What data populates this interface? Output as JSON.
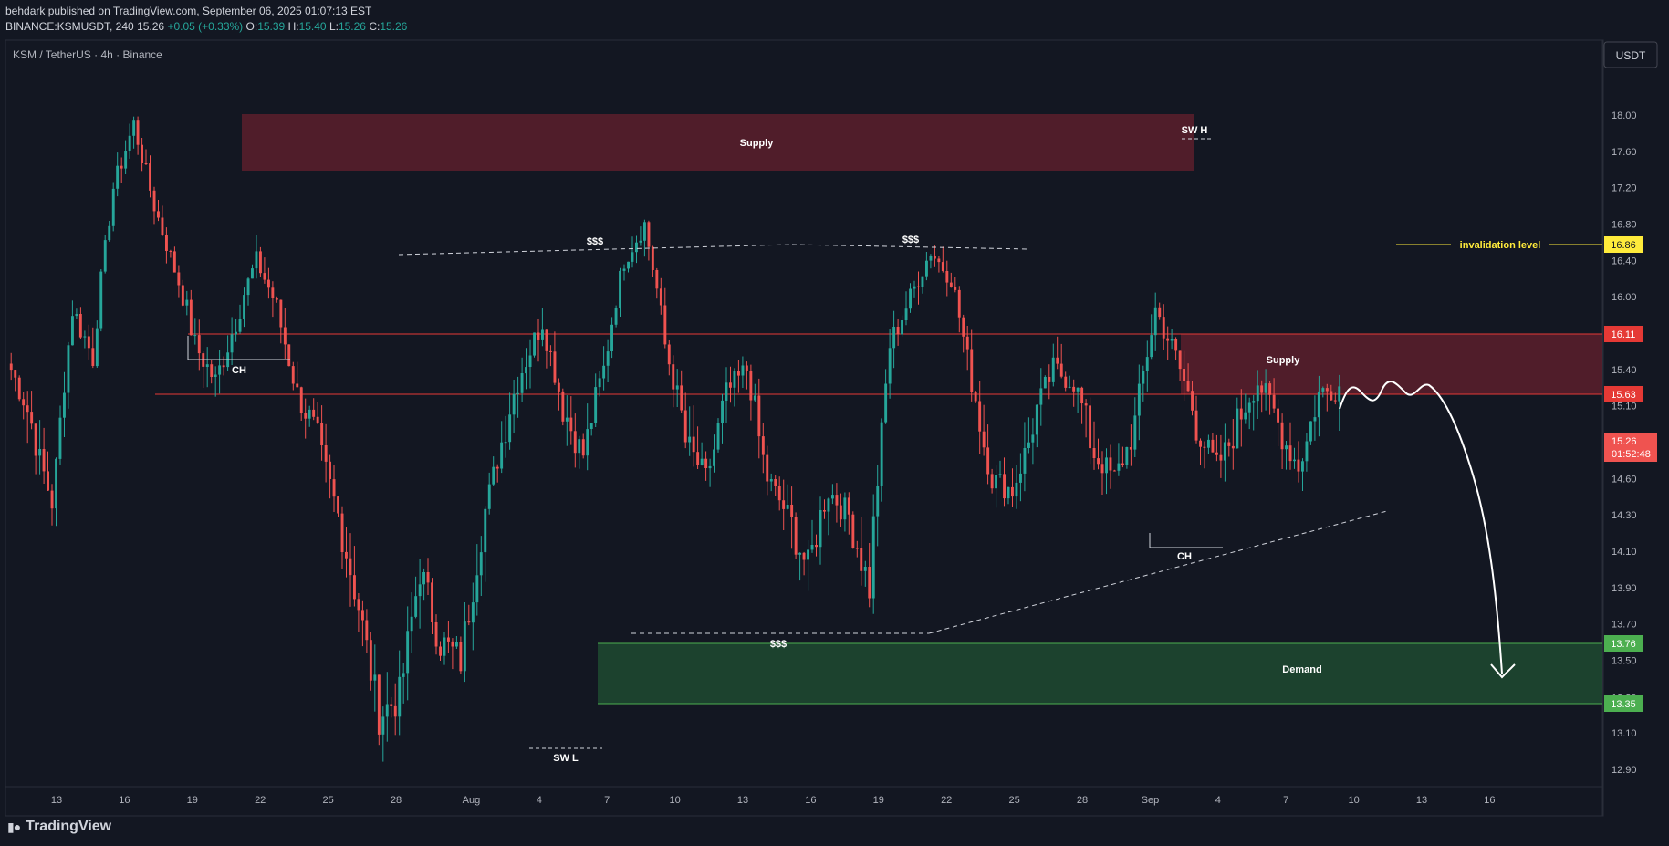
{
  "header": {
    "line1": "behdark published on TradingView.com, September 06, 2025 01:07:13 EST",
    "symbol": "BINANCE:KSMUSDT, 240",
    "last": "15.26",
    "change": "+0.05 (+0.33%)",
    "o_label": "O:",
    "o": "15.39",
    "h_label": "H:",
    "h": "15.40",
    "l_label": "L:",
    "l": "15.26",
    "c_label": "C:",
    "c": "15.26"
  },
  "chart_title": "KSM / TetherUS · 4h · Binance",
  "currency": "USDT",
  "footer": {
    "brand": "TradingView"
  },
  "colors": {
    "background": "#131722",
    "up": "#26a69a",
    "down": "#ef5350",
    "supply": "#5c1e2c",
    "demand": "#1f4a30",
    "level_red": "#e53935",
    "level_green": "#4caf50",
    "invalidation": "#ffeb3b"
  },
  "chart_data": {
    "type": "candlestick",
    "y_axis": {
      "ticks": [
        "18.00",
        "17.60",
        "17.20",
        "16.80",
        "16.40",
        "16.00",
        "15.70",
        "15.40",
        "15.10",
        "14.90",
        "14.60",
        "14.30",
        "14.10",
        "13.90",
        "13.70",
        "13.50",
        "13.30",
        "13.10",
        "12.90"
      ],
      "range": [
        12.8,
        18.2
      ]
    },
    "x_axis": {
      "ticks": [
        "13",
        "16",
        "19",
        "22",
        "25",
        "28",
        "Aug",
        "4",
        "7",
        "10",
        "13",
        "16",
        "19",
        "22",
        "25",
        "28",
        "Sep",
        "4",
        "7",
        "10",
        "13",
        "16"
      ]
    },
    "price_badges": [
      {
        "value": "16.86",
        "kind": "invalidation"
      },
      {
        "value": "16.11",
        "kind": "level"
      },
      {
        "value": "15.63",
        "kind": "level"
      },
      {
        "value": "15.26",
        "kind": "last",
        "countdown": "01:52:48"
      },
      {
        "value": "13.76",
        "kind": "demand"
      },
      {
        "value": "13.35",
        "kind": "demand"
      }
    ],
    "zones": [
      {
        "label": "Supply",
        "top": 18.0,
        "bottom": 17.55
      },
      {
        "label": "Supply",
        "top": 16.11,
        "bottom": 15.63
      },
      {
        "label": "Demand",
        "top": 13.76,
        "bottom": 13.35
      }
    ],
    "levels": [
      16.11,
      15.63
    ],
    "invalidation": {
      "label": "invalidation level",
      "value": 16.86
    },
    "annotations": [
      {
        "text": "SW H",
        "kind": "swing-high"
      },
      {
        "text": "SW L",
        "kind": "swing-low"
      },
      {
        "text": "CH",
        "kind": "change-of-character"
      },
      {
        "text": "CH",
        "kind": "change-of-character"
      },
      {
        "text": "$$$",
        "kind": "liquidity"
      },
      {
        "text": "$$$",
        "kind": "liquidity"
      },
      {
        "text": "$$$",
        "kind": "liquidity"
      }
    ],
    "key_closes": [
      15.4,
      15.0,
      14.4,
      15.9,
      15.5,
      17.2,
      17.9,
      17.0,
      16.3,
      15.6,
      15.3,
      15.8,
      16.4,
      15.9,
      15.2,
      14.9,
      14.3,
      13.8,
      13.2,
      13.3,
      14.0,
      13.6,
      13.5,
      14.2,
      14.9,
      15.4,
      15.8,
      15.1,
      14.8,
      15.4,
      16.4,
      16.8,
      15.6,
      14.9,
      14.6,
      15.2,
      15.4,
      14.6,
      14.3,
      14.0,
      14.5,
      14.3,
      13.9,
      15.6,
      16.0,
      16.5,
      16.2,
      15.3,
      14.6,
      14.5,
      15.0,
      15.4,
      15.3,
      14.8,
      14.6,
      15.0,
      15.9,
      15.5,
      15.0,
      14.7,
      15.0,
      15.3,
      15.0,
      14.7,
      15.2,
      15.26
    ]
  }
}
